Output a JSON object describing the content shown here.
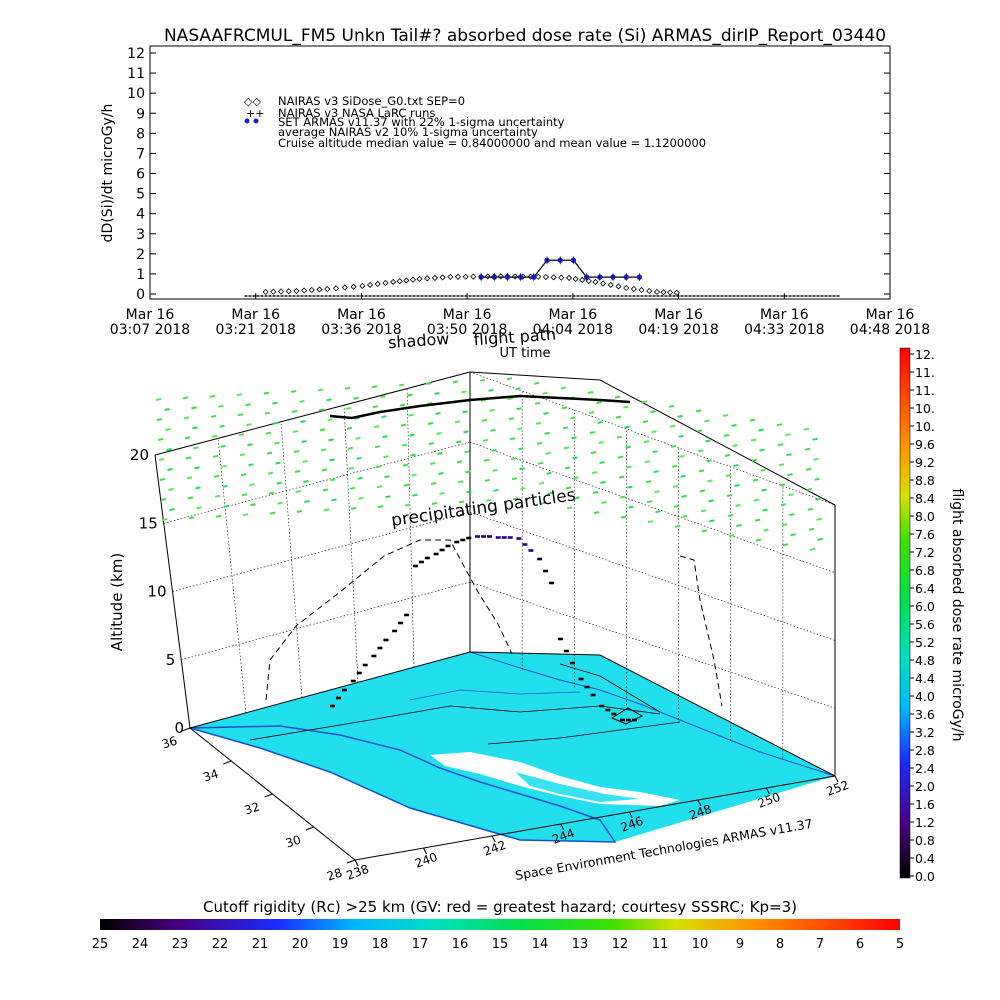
{
  "title": "NASAAFRCMUL_FM5 Unkn Tail#? absorbed dose rate (Si) ARMAS_dirIP_Report_03440",
  "chart_data": [
    {
      "type": "scatter",
      "ylabel": "dD(Si)/dt microGy/h",
      "xlabel": "UT time",
      "ylim": [
        0,
        12
      ],
      "yticks": [
        "0",
        "1",
        "2",
        "3",
        "4",
        "5",
        "6",
        "7",
        "8",
        "9",
        "10",
        "11",
        "12"
      ],
      "xticks": [
        {
          "top": "Mar 16",
          "bottom": "03:07 2018"
        },
        {
          "top": "Mar 16",
          "bottom": "03:21 2018"
        },
        {
          "top": "Mar 16",
          "bottom": "03:36 2018"
        },
        {
          "top": "Mar 16",
          "bottom": "03:50 2018"
        },
        {
          "top": "Mar 16",
          "bottom": "04:04 2018"
        },
        {
          "top": "Mar 16",
          "bottom": "04:19 2018"
        },
        {
          "top": "Mar 16",
          "bottom": "04:33 2018"
        },
        {
          "top": "Mar 16",
          "bottom": "04:48 2018"
        }
      ],
      "legend": [
        "NAIRAS v3 SiDose_G0.txt SEP=0",
        "NAIRAS v3 NASA LaRC runs",
        "SET ARMAS v11.37 with 22% 1-sigma uncertainty",
        "average NAIRAS v2 10% 1-sigma uncertainty",
        "Cruise altitude median value = 0.84000000 and mean value = 1.1200000"
      ],
      "series": [
        {
          "name": "NAIRAS v3 SiDose_G0.txt SEP=0",
          "x": [
            3.38,
            3.45,
            3.52,
            3.6,
            3.67,
            3.73,
            3.8,
            3.87,
            3.93,
            4.0,
            4.07,
            4.13,
            4.2,
            4.27,
            4.33
          ],
          "values": [
            0.1,
            0.15,
            0.25,
            0.4,
            0.6,
            0.75,
            0.85,
            0.87,
            0.88,
            0.86,
            0.8,
            0.6,
            0.3,
            0.1,
            0.05
          ]
        },
        {
          "name": "SET ARMAS v11.37 with 22% 1-sigma uncertainty",
          "x": [
            3.87,
            3.9,
            3.93,
            3.96,
            3.99,
            4.02,
            4.05,
            4.08,
            4.11,
            4.14,
            4.17,
            4.2,
            4.23
          ],
          "values": [
            0.84,
            0.84,
            0.84,
            0.84,
            0.84,
            1.68,
            1.68,
            1.68,
            0.84,
            0.84,
            0.84,
            0.84,
            0.84
          ]
        }
      ],
      "annotations": [
        "flight path",
        "shadow"
      ]
    },
    {
      "type": "heatmap",
      "zlabel": "Altitude (km)",
      "zticks": [
        "0",
        "5",
        "10",
        "15",
        "20"
      ],
      "lat_ticks": [
        "28",
        "30",
        "32",
        "34",
        "36"
      ],
      "lon_ticks": [
        "238",
        "240",
        "242",
        "244",
        "246",
        "248",
        "250",
        "252"
      ],
      "annotations": [
        "precipitating particles",
        "Space Environment Technologies ARMAS v11.37"
      ],
      "flight_altitude_km": [
        0,
        2,
        4,
        6,
        8,
        9,
        10,
        10.5,
        10.5,
        10.5,
        9,
        6,
        3,
        1,
        0
      ]
    }
  ],
  "dose_colorbar": {
    "label": "flight absorbed dose rate microGy/h",
    "ticks": [
      "12.",
      "11.",
      "11.",
      "10.",
      "10.",
      "9.6",
      "9.2",
      "8.8",
      "8.4",
      "8.0",
      "7.6",
      "7.2",
      "6.8",
      "6.4",
      "6.0",
      "5.6",
      "5.2",
      "4.8",
      "4.4",
      "4.0",
      "3.6",
      "3.2",
      "2.8",
      "2.4",
      "2.0",
      "1.6",
      "1.2",
      "0.8",
      "0.4",
      "0.0"
    ]
  },
  "cutoff_bar": {
    "title": "Cutoff rigidity (Rc) >25 km (GV: red = greatest hazard; courtesy SSSRC; Kp=3)",
    "ticks": [
      "25",
      "24",
      "23",
      "22",
      "21",
      "20",
      "19",
      "18",
      "17",
      "16",
      "15",
      "14",
      "13",
      "12",
      "11",
      "10",
      "9",
      "8",
      "7",
      "6",
      "5"
    ]
  },
  "colors": {
    "ocean": "#22dfee",
    "sea_edge": "#1650c8",
    "armas": "#1c1cd8",
    "precip": "#22dd55",
    "grid": "#000000"
  }
}
